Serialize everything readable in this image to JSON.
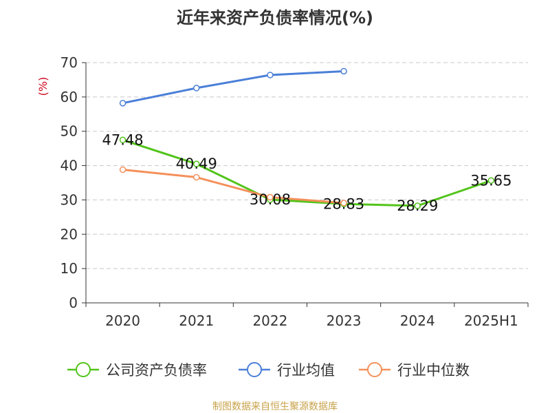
{
  "chart_data": {
    "type": "line",
    "title": "近年来资产负债率情况(%)",
    "ylabel": "(%)",
    "xlabel": "",
    "categories": [
      "2020",
      "2021",
      "2022",
      "2023",
      "2024",
      "2025H1"
    ],
    "ylim": [
      0,
      70
    ],
    "yticks": [
      0,
      10,
      20,
      30,
      40,
      50,
      60,
      70
    ],
    "grid": true,
    "legend_position": "bottom",
    "series": [
      {
        "name": "公司资产负债率",
        "color": "#52c41a",
        "values": [
          47.48,
          40.49,
          30.08,
          28.83,
          28.29,
          35.65
        ],
        "labels": [
          "47.48",
          "40.49",
          "30.08",
          "28.83",
          "28.29",
          "35.65"
        ]
      },
      {
        "name": "行业均值",
        "color": "#4a7fd8",
        "values": [
          58.2,
          62.6,
          66.4,
          67.5,
          null,
          null
        ]
      },
      {
        "name": "行业中位数",
        "color": "#f4905a",
        "values": [
          38.8,
          36.6,
          30.8,
          29.1,
          null,
          null
        ]
      }
    ]
  },
  "source_note": "制图数据来自恒生聚源数据库"
}
